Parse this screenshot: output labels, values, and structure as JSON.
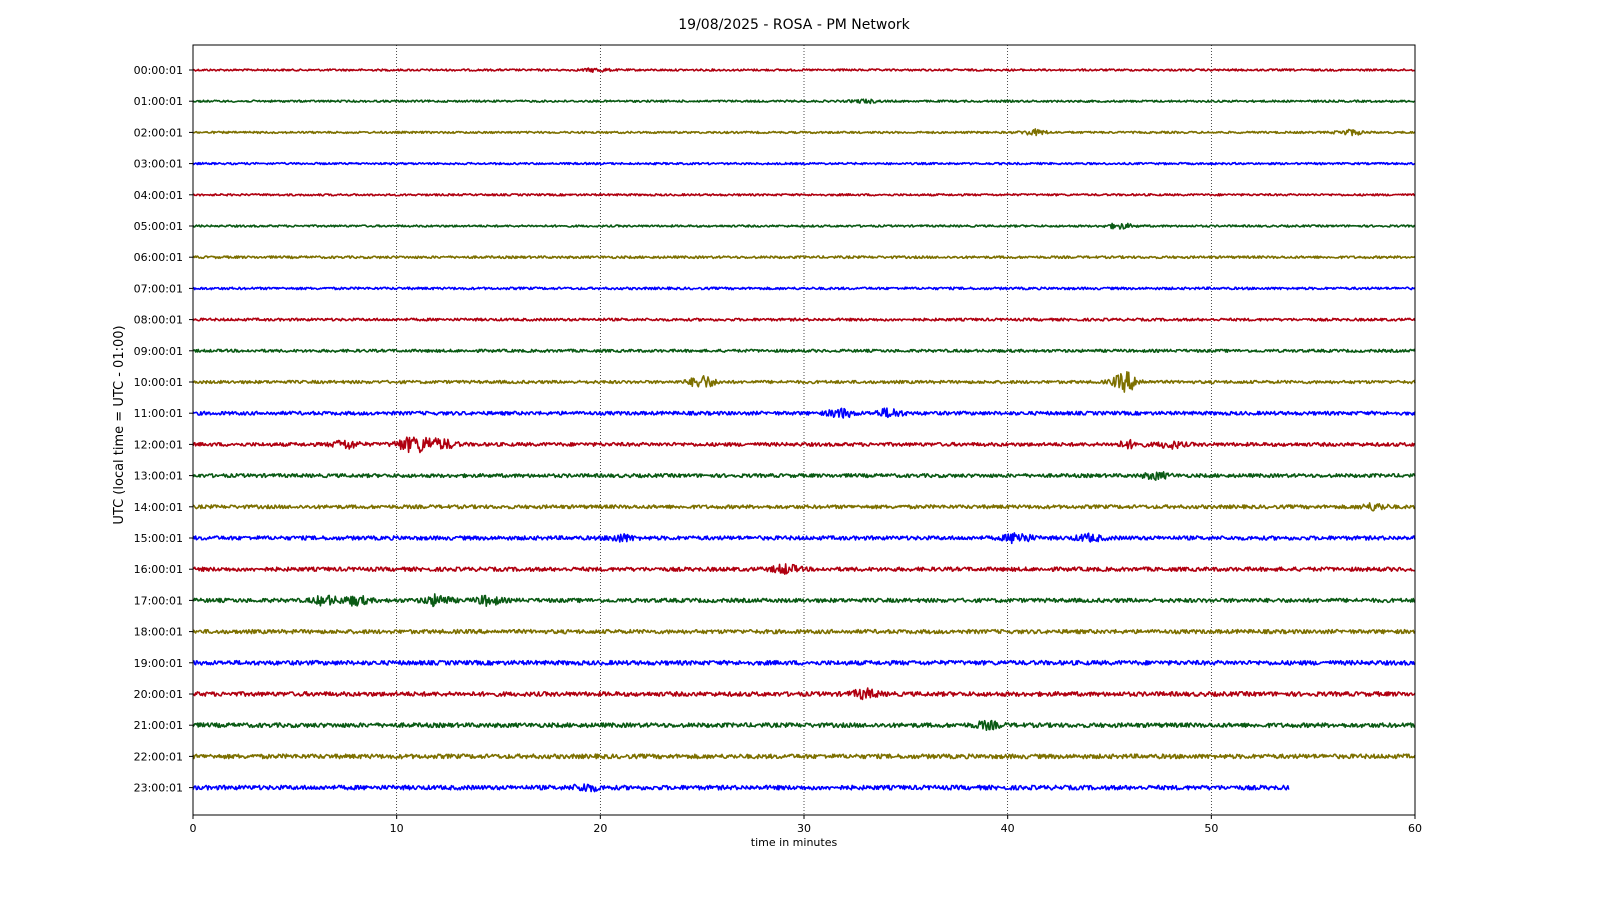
{
  "chart_data": {
    "type": "line",
    "title": "19/08/2025 - ROSA - PM Network",
    "xlabel": "time in minutes",
    "ylabel": "UTC (local time = UTC - 01:00)",
    "xlim": [
      0,
      60
    ],
    "xticks": [
      "0",
      "10",
      "20",
      "30",
      "40",
      "50",
      "60"
    ],
    "grid": "vertical dotted lines at x ticks",
    "trace_colors": [
      "#b00010",
      "#0a5a14",
      "#7d7000",
      "#0000ff"
    ],
    "traces": [
      {
        "label": "00:00:01",
        "end_minute": 60,
        "amplitude": 1.0,
        "events": [
          [
            19.8,
            1.5
          ]
        ]
      },
      {
        "label": "01:00:01",
        "end_minute": 60,
        "amplitude": 1.0,
        "events": [
          [
            33.0,
            1.5
          ]
        ]
      },
      {
        "label": "02:00:01",
        "end_minute": 60,
        "amplitude": 1.0,
        "events": [
          [
            41.3,
            2.5
          ],
          [
            56.8,
            2.5
          ]
        ]
      },
      {
        "label": "03:00:01",
        "end_minute": 60,
        "amplitude": 1.0,
        "events": []
      },
      {
        "label": "04:00:01",
        "end_minute": 60,
        "amplitude": 1.0,
        "events": []
      },
      {
        "label": "05:00:01",
        "end_minute": 60,
        "amplitude": 1.0,
        "events": [
          [
            45.5,
            2.5
          ]
        ]
      },
      {
        "label": "06:00:01",
        "end_minute": 60,
        "amplitude": 1.2,
        "events": []
      },
      {
        "label": "07:00:01",
        "end_minute": 60,
        "amplitude": 1.2,
        "events": []
      },
      {
        "label": "08:00:01",
        "end_minute": 60,
        "amplitude": 1.3,
        "events": []
      },
      {
        "label": "09:00:01",
        "end_minute": 60,
        "amplitude": 1.4,
        "events": []
      },
      {
        "label": "10:00:01",
        "end_minute": 60,
        "amplitude": 1.5,
        "events": [
          [
            25.0,
            6
          ],
          [
            45.8,
            9
          ]
        ]
      },
      {
        "label": "11:00:01",
        "end_minute": 60,
        "amplitude": 1.8,
        "events": [
          [
            31.8,
            4
          ],
          [
            34.2,
            4
          ]
        ]
      },
      {
        "label": "12:00:01",
        "end_minute": 60,
        "amplitude": 1.8,
        "events": [
          [
            7.5,
            4
          ],
          [
            10.5,
            5
          ],
          [
            11.3,
            6
          ],
          [
            12.3,
            4
          ],
          [
            46.0,
            3
          ],
          [
            48.0,
            3
          ]
        ]
      },
      {
        "label": "13:00:01",
        "end_minute": 60,
        "amplitude": 1.8,
        "events": [
          [
            47.3,
            3
          ]
        ]
      },
      {
        "label": "14:00:01",
        "end_minute": 60,
        "amplitude": 1.8,
        "events": [
          [
            58.0,
            3
          ]
        ]
      },
      {
        "label": "15:00:01",
        "end_minute": 60,
        "amplitude": 2.0,
        "events": [
          [
            21.0,
            3
          ],
          [
            40.5,
            5
          ],
          [
            44.0,
            3
          ]
        ]
      },
      {
        "label": "16:00:01",
        "end_minute": 60,
        "amplitude": 2.0,
        "events": [
          [
            29.1,
            4
          ]
        ]
      },
      {
        "label": "17:00:01",
        "end_minute": 60,
        "amplitude": 2.0,
        "events": [
          [
            6.5,
            4
          ],
          [
            8.0,
            4
          ],
          [
            12.0,
            5
          ],
          [
            14.5,
            4
          ]
        ]
      },
      {
        "label": "18:00:01",
        "end_minute": 60,
        "amplitude": 2.0,
        "events": []
      },
      {
        "label": "19:00:01",
        "end_minute": 60,
        "amplitude": 2.2,
        "events": []
      },
      {
        "label": "20:00:01",
        "end_minute": 60,
        "amplitude": 2.2,
        "events": [
          [
            33.0,
            4
          ]
        ]
      },
      {
        "label": "21:00:01",
        "end_minute": 60,
        "amplitude": 2.2,
        "events": [
          [
            39.0,
            3
          ]
        ]
      },
      {
        "label": "22:00:01",
        "end_minute": 60,
        "amplitude": 2.2,
        "events": []
      },
      {
        "label": "23:00:01",
        "end_minute": 53.8,
        "amplitude": 2.2,
        "events": [
          [
            19.3,
            3
          ]
        ]
      }
    ]
  }
}
